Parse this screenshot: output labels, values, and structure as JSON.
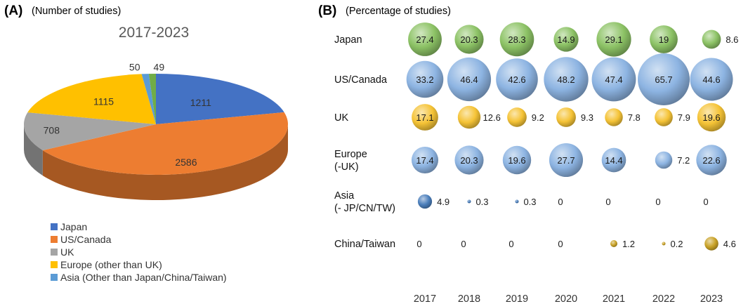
{
  "panel_a": {
    "letter": "(A)",
    "subtitle": "(Number of studies)"
  },
  "panel_b": {
    "letter": "(B)",
    "subtitle": "(Percentage of studies)"
  },
  "chart_data": [
    {
      "type": "pie",
      "title": "2017-2023",
      "categories": [
        "Japan",
        "US/Canada",
        "UK",
        "Europe (other than UK)",
        "Asia (Other than Japan/China/Taiwan)",
        "China/Taiwan"
      ],
      "legend_entries": [
        "Japan",
        "US/Canada",
        "UK",
        "Europe (other than UK)",
        "Asia (Other than Japan/China/Taiwan)"
      ],
      "values": [
        1211,
        2586,
        708,
        1115,
        50,
        49
      ],
      "colors": [
        "#4472C4",
        "#ED7D31",
        "#A5A5A5",
        "#FFC000",
        "#5B9BD5",
        "#70AD47"
      ],
      "legend_position": "bottom-left"
    },
    {
      "type": "scatter",
      "subtype": "bubble",
      "x": [
        "2017",
        "2018",
        "2019",
        "2020",
        "2021",
        "2022",
        "2023"
      ],
      "series": [
        {
          "label_lines": [
            "Japan"
          ],
          "color": "#8CC265",
          "values": [
            27.4,
            20.3,
            28.3,
            14.9,
            29.1,
            19,
            8.6
          ]
        },
        {
          "label_lines": [
            "US/Canada"
          ],
          "color": "#8DB4E2",
          "values": [
            33.2,
            46.4,
            42.6,
            48.2,
            47.4,
            65.7,
            44.6
          ]
        },
        {
          "label_lines": [
            "UK"
          ],
          "color": "#F5C336",
          "values": [
            17.1,
            12.6,
            9.2,
            9.3,
            7.8,
            7.9,
            19.6
          ]
        },
        {
          "label_lines": [
            "Europe",
            "(-UK)"
          ],
          "color": "#8DB4E2",
          "values": [
            17.4,
            20.3,
            19.6,
            27.7,
            14.4,
            7.2,
            22.6
          ]
        },
        {
          "label_lines": [
            "Asia",
            "(- JP/CN/TW)"
          ],
          "color": "#4A7EBB",
          "values": [
            4.9,
            0.3,
            0.3,
            0,
            0,
            0,
            0
          ]
        },
        {
          "label_lines": [
            "China/Taiwan"
          ],
          "color": "#C9A227",
          "values": [
            0,
            0,
            0,
            0,
            1.2,
            0.2,
            4.6
          ]
        }
      ]
    }
  ]
}
